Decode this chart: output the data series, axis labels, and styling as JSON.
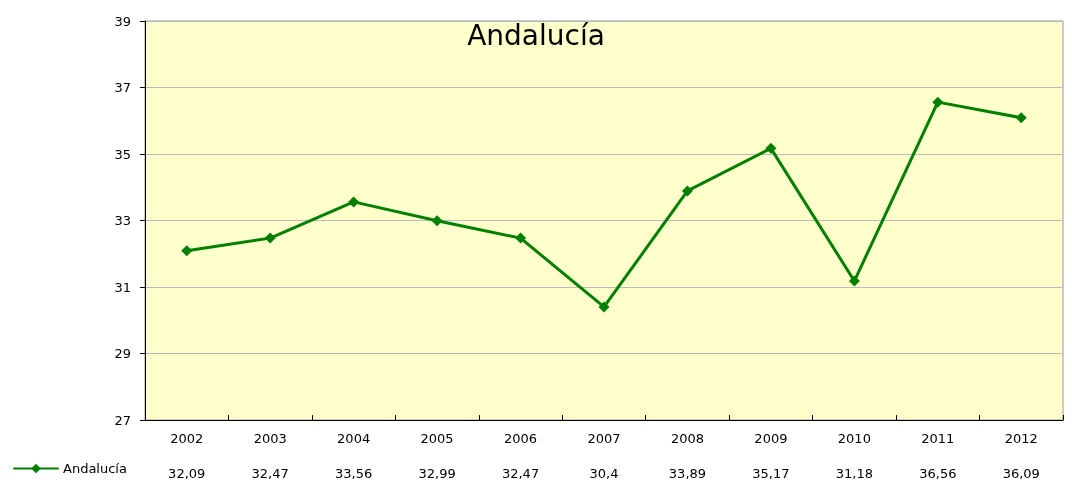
{
  "chart_data": {
    "type": "line",
    "title": "Andalucía",
    "categories": [
      "2002",
      "2003",
      "2004",
      "2005",
      "2006",
      "2007",
      "2008",
      "2009",
      "2010",
      "2011",
      "2012"
    ],
    "series": [
      {
        "name": "Andalucía",
        "color": "#008000",
        "values": [
          32.09,
          32.47,
          33.56,
          32.99,
          32.47,
          30.4,
          33.89,
          35.17,
          31.18,
          36.56,
          36.09
        ],
        "value_labels": [
          "32,09",
          "32,47",
          "33,56",
          "32,99",
          "32,47",
          "30,4",
          "33,89",
          "35,17",
          "31,18",
          "36,56",
          "36,09"
        ]
      }
    ],
    "ylim": [
      27,
      39
    ],
    "yticks": [
      27,
      29,
      31,
      33,
      35,
      37,
      39
    ],
    "grid": "y",
    "legend": "bottom left",
    "marker": "diamond",
    "line_style": "solid"
  }
}
